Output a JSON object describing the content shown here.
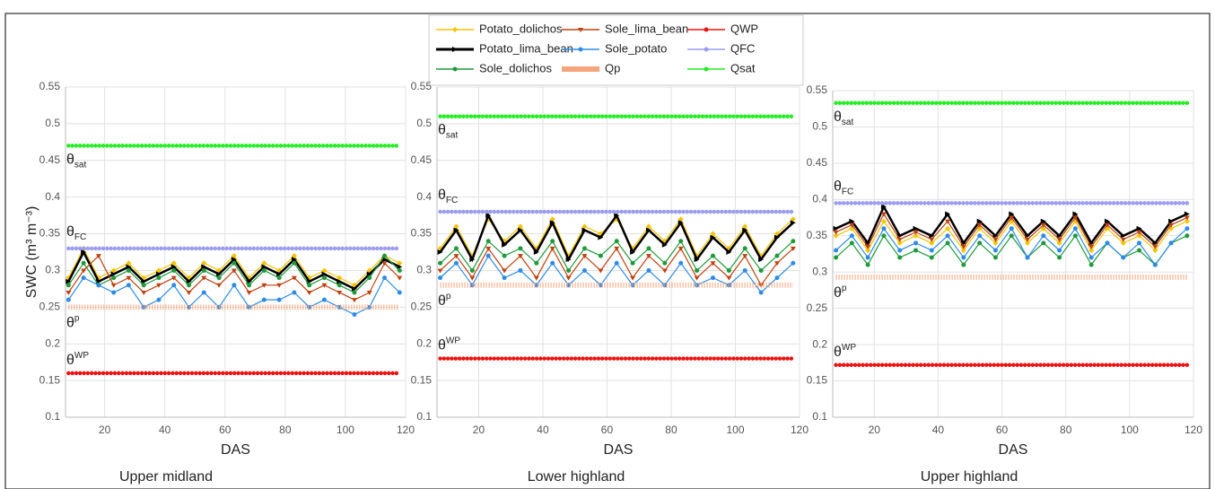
{
  "legend": [
    {
      "name": "Potato_dolichos",
      "color": "#f5c400",
      "marker": "diamond"
    },
    {
      "name": "Potato_lima_bean",
      "color": "#000000",
      "marker": "arrow"
    },
    {
      "name": "Sole_dolichos",
      "color": "#1e9a3a",
      "marker": "circle"
    },
    {
      "name": "Sole_lima_bean",
      "color": "#c0400f",
      "marker": "triangle"
    },
    {
      "name": "Sole_potato",
      "color": "#2e8be6",
      "marker": "circle"
    },
    {
      "name": "Qp",
      "color": "#f5a57c",
      "marker": "band"
    },
    {
      "name": "QWP",
      "color": "#ee1111",
      "marker": "dots"
    },
    {
      "name": "QFC",
      "color": "#9c9cf0",
      "marker": "dots"
    },
    {
      "name": "Qsat",
      "color": "#22ee22",
      "marker": "dots"
    }
  ],
  "chart_data": [
    {
      "type": "line",
      "subtitle": "Upper midland",
      "xlabel": "DAS",
      "ylabel": "SWC (m³ m⁻³)",
      "xlim": [
        7,
        120
      ],
      "xticks": [
        20,
        40,
        60,
        80,
        100,
        120
      ],
      "ylim": [
        0.1,
        0.55
      ],
      "yticks": [
        0.1,
        0.15,
        0.2,
        0.25,
        0.3,
        0.35,
        0.4,
        0.45,
        0.5,
        0.55
      ],
      "grid": true,
      "x": [
        8,
        13,
        18,
        23,
        28,
        33,
        38,
        43,
        48,
        53,
        58,
        63,
        68,
        73,
        78,
        83,
        88,
        93,
        98,
        103,
        108,
        113,
        118
      ],
      "series": [
        {
          "values": [
            0.29,
            0.33,
            0.29,
            0.3,
            0.31,
            0.29,
            0.3,
            0.31,
            0.29,
            0.31,
            0.3,
            0.32,
            0.29,
            0.31,
            0.3,
            0.32,
            0.29,
            0.3,
            0.29,
            0.28,
            0.3,
            0.32,
            0.31
          ]
        },
        {
          "values": [
            0.285,
            0.325,
            0.285,
            0.295,
            0.305,
            0.285,
            0.295,
            0.305,
            0.285,
            0.305,
            0.295,
            0.315,
            0.285,
            0.305,
            0.295,
            0.315,
            0.285,
            0.295,
            0.285,
            0.275,
            0.295,
            0.315,
            0.305
          ]
        },
        {
          "values": [
            0.28,
            0.31,
            0.28,
            0.29,
            0.3,
            0.28,
            0.29,
            0.3,
            0.28,
            0.3,
            0.29,
            0.31,
            0.28,
            0.3,
            0.29,
            0.31,
            0.28,
            0.29,
            0.28,
            0.27,
            0.29,
            0.32,
            0.3
          ]
        },
        {
          "values": [
            0.27,
            0.3,
            0.32,
            0.28,
            0.29,
            0.27,
            0.28,
            0.29,
            0.27,
            0.29,
            0.28,
            0.3,
            0.27,
            0.28,
            0.28,
            0.29,
            0.27,
            0.28,
            0.27,
            0.26,
            0.27,
            0.31,
            0.29
          ]
        },
        {
          "values": [
            0.26,
            0.29,
            0.28,
            0.27,
            0.28,
            0.25,
            0.26,
            0.28,
            0.25,
            0.27,
            0.25,
            0.28,
            0.25,
            0.26,
            0.26,
            0.27,
            0.25,
            0.26,
            0.25,
            0.24,
            0.25,
            0.29,
            0.27
          ]
        },
        {
          "values": [
            0.25,
            0.25,
            0.25,
            0.25,
            0.25,
            0.25,
            0.25,
            0.25,
            0.25,
            0.25,
            0.25,
            0.25,
            0.25,
            0.25,
            0.25,
            0.25,
            0.25,
            0.25,
            0.25,
            0.25,
            0.25,
            0.25,
            0.25
          ],
          "label": {
            "base": "θ",
            "sup": "p"
          }
        },
        {
          "values": [
            0.16,
            0.16,
            0.16,
            0.16,
            0.16,
            0.16,
            0.16,
            0.16,
            0.16,
            0.16,
            0.16,
            0.16,
            0.16,
            0.16,
            0.16,
            0.16,
            0.16,
            0.16,
            0.16,
            0.16,
            0.16,
            0.16,
            0.16
          ],
          "label": {
            "base": "θ",
            "sup": "WP"
          }
        },
        {
          "values": [
            0.33,
            0.33,
            0.33,
            0.33,
            0.33,
            0.33,
            0.33,
            0.33,
            0.33,
            0.33,
            0.33,
            0.33,
            0.33,
            0.33,
            0.33,
            0.33,
            0.33,
            0.33,
            0.33,
            0.33,
            0.33,
            0.33,
            0.33
          ],
          "label": {
            "base": "θ",
            "sub": "FC"
          }
        },
        {
          "values": [
            0.47,
            0.47,
            0.47,
            0.47,
            0.47,
            0.47,
            0.47,
            0.47,
            0.47,
            0.47,
            0.47,
            0.47,
            0.47,
            0.47,
            0.47,
            0.47,
            0.47,
            0.47,
            0.47,
            0.47,
            0.47,
            0.47,
            0.47
          ],
          "label": {
            "base": "θ",
            "sub": "sat"
          }
        }
      ]
    },
    {
      "type": "line",
      "subtitle": "Lower highland",
      "xlabel": "DAS",
      "xlim": [
        7,
        120
      ],
      "xticks": [
        20,
        40,
        60,
        80,
        100,
        120
      ],
      "ylim": [
        0.1,
        0.55
      ],
      "yticks": [
        0.1,
        0.15,
        0.2,
        0.25,
        0.3,
        0.35,
        0.4,
        0.45,
        0.5,
        0.55
      ],
      "grid": true,
      "x": [
        8,
        13,
        18,
        23,
        28,
        33,
        38,
        43,
        48,
        53,
        58,
        63,
        68,
        73,
        78,
        83,
        88,
        93,
        98,
        103,
        108,
        113,
        118
      ],
      "series": [
        {
          "values": [
            0.33,
            0.36,
            0.32,
            0.37,
            0.34,
            0.36,
            0.33,
            0.37,
            0.32,
            0.36,
            0.35,
            0.37,
            0.33,
            0.36,
            0.34,
            0.37,
            0.32,
            0.35,
            0.33,
            0.36,
            0.32,
            0.35,
            0.37
          ]
        },
        {
          "values": [
            0.325,
            0.355,
            0.315,
            0.375,
            0.335,
            0.355,
            0.325,
            0.365,
            0.315,
            0.355,
            0.345,
            0.375,
            0.325,
            0.355,
            0.335,
            0.365,
            0.315,
            0.345,
            0.325,
            0.355,
            0.315,
            0.345,
            0.365
          ]
        },
        {
          "values": [
            0.31,
            0.33,
            0.3,
            0.34,
            0.32,
            0.33,
            0.31,
            0.34,
            0.3,
            0.33,
            0.32,
            0.34,
            0.31,
            0.33,
            0.31,
            0.34,
            0.3,
            0.32,
            0.3,
            0.33,
            0.3,
            0.32,
            0.34
          ]
        },
        {
          "values": [
            0.3,
            0.32,
            0.29,
            0.33,
            0.3,
            0.32,
            0.29,
            0.33,
            0.29,
            0.32,
            0.3,
            0.33,
            0.29,
            0.32,
            0.3,
            0.33,
            0.29,
            0.31,
            0.29,
            0.32,
            0.28,
            0.31,
            0.33
          ]
        },
        {
          "values": [
            0.29,
            0.31,
            0.28,
            0.32,
            0.29,
            0.3,
            0.28,
            0.31,
            0.28,
            0.3,
            0.28,
            0.31,
            0.28,
            0.3,
            0.28,
            0.31,
            0.28,
            0.29,
            0.28,
            0.3,
            0.27,
            0.29,
            0.31
          ]
        },
        {
          "values": [
            0.28,
            0.28,
            0.28,
            0.28,
            0.28,
            0.28,
            0.28,
            0.28,
            0.28,
            0.28,
            0.28,
            0.28,
            0.28,
            0.28,
            0.28,
            0.28,
            0.28,
            0.28,
            0.28,
            0.28,
            0.28,
            0.28,
            0.28
          ],
          "label": {
            "base": "θ",
            "sup": "p"
          }
        },
        {
          "values": [
            0.18,
            0.18,
            0.18,
            0.18,
            0.18,
            0.18,
            0.18,
            0.18,
            0.18,
            0.18,
            0.18,
            0.18,
            0.18,
            0.18,
            0.18,
            0.18,
            0.18,
            0.18,
            0.18,
            0.18,
            0.18,
            0.18,
            0.18
          ],
          "label": {
            "base": "θ",
            "sup": "WP"
          }
        },
        {
          "values": [
            0.38,
            0.38,
            0.38,
            0.38,
            0.38,
            0.38,
            0.38,
            0.38,
            0.38,
            0.38,
            0.38,
            0.38,
            0.38,
            0.38,
            0.38,
            0.38,
            0.38,
            0.38,
            0.38,
            0.38,
            0.38,
            0.38,
            0.38
          ],
          "label": {
            "base": "θ",
            "sub": "FC"
          }
        },
        {
          "values": [
            0.51,
            0.51,
            0.51,
            0.51,
            0.51,
            0.51,
            0.51,
            0.51,
            0.51,
            0.51,
            0.51,
            0.51,
            0.51,
            0.51,
            0.51,
            0.51,
            0.51,
            0.51,
            0.51,
            0.51,
            0.51,
            0.51,
            0.51
          ],
          "label": {
            "base": "θ",
            "sub": "sat"
          }
        }
      ]
    },
    {
      "type": "line",
      "subtitle": "Upper highland",
      "xlabel": "DAS",
      "xlim": [
        7,
        120
      ],
      "xticks": [
        20,
        40,
        60,
        80,
        100,
        120
      ],
      "ylim": [
        0.1,
        0.55
      ],
      "yticks": [
        0.1,
        0.15,
        0.2,
        0.25,
        0.3,
        0.35,
        0.4,
        0.45,
        0.5,
        0.55
      ],
      "grid": true,
      "x": [
        8,
        13,
        18,
        23,
        28,
        33,
        38,
        43,
        48,
        53,
        58,
        63,
        68,
        73,
        78,
        83,
        88,
        93,
        98,
        103,
        108,
        113,
        118
      ],
      "series": [
        {
          "values": [
            0.35,
            0.36,
            0.33,
            0.37,
            0.34,
            0.35,
            0.34,
            0.36,
            0.33,
            0.36,
            0.34,
            0.37,
            0.34,
            0.36,
            0.34,
            0.37,
            0.33,
            0.36,
            0.34,
            0.35,
            0.33,
            0.36,
            0.37
          ]
        },
        {
          "values": [
            0.36,
            0.37,
            0.34,
            0.39,
            0.35,
            0.36,
            0.35,
            0.38,
            0.34,
            0.37,
            0.35,
            0.38,
            0.35,
            0.37,
            0.35,
            0.38,
            0.34,
            0.37,
            0.35,
            0.36,
            0.34,
            0.37,
            0.38
          ]
        },
        {
          "values": [
            0.32,
            0.34,
            0.31,
            0.35,
            0.32,
            0.33,
            0.32,
            0.34,
            0.31,
            0.34,
            0.32,
            0.35,
            0.32,
            0.34,
            0.32,
            0.35,
            0.31,
            0.34,
            0.32,
            0.33,
            0.31,
            0.34,
            0.35
          ]
        },
        {
          "values": [
            0.355,
            0.365,
            0.335,
            0.38,
            0.345,
            0.355,
            0.345,
            0.37,
            0.335,
            0.365,
            0.345,
            0.375,
            0.345,
            0.365,
            0.345,
            0.375,
            0.335,
            0.365,
            0.345,
            0.355,
            0.335,
            0.365,
            0.375
          ]
        },
        {
          "values": [
            0.33,
            0.35,
            0.32,
            0.36,
            0.33,
            0.34,
            0.33,
            0.35,
            0.32,
            0.35,
            0.33,
            0.36,
            0.32,
            0.35,
            0.33,
            0.36,
            0.32,
            0.34,
            0.32,
            0.34,
            0.31,
            0.34,
            0.36
          ]
        },
        {
          "values": [
            0.293,
            0.293,
            0.293,
            0.293,
            0.293,
            0.293,
            0.293,
            0.293,
            0.293,
            0.293,
            0.293,
            0.293,
            0.293,
            0.293,
            0.293,
            0.293,
            0.293,
            0.293,
            0.293,
            0.293,
            0.293,
            0.293,
            0.293
          ],
          "label": {
            "base": "θ",
            "sup": "p"
          }
        },
        {
          "values": [
            0.172,
            0.172,
            0.172,
            0.172,
            0.172,
            0.172,
            0.172,
            0.172,
            0.172,
            0.172,
            0.172,
            0.172,
            0.172,
            0.172,
            0.172,
            0.172,
            0.172,
            0.172,
            0.172,
            0.172,
            0.172,
            0.172,
            0.172
          ],
          "label": {
            "base": "θ",
            "sup": "WP"
          }
        },
        {
          "values": [
            0.395,
            0.395,
            0.395,
            0.395,
            0.395,
            0.395,
            0.395,
            0.395,
            0.395,
            0.395,
            0.395,
            0.395,
            0.395,
            0.395,
            0.395,
            0.395,
            0.395,
            0.395,
            0.395,
            0.395,
            0.395,
            0.395,
            0.395
          ],
          "label": {
            "base": "θ",
            "sub": "FC"
          }
        },
        {
          "values": [
            0.533,
            0.533,
            0.533,
            0.533,
            0.533,
            0.533,
            0.533,
            0.533,
            0.533,
            0.533,
            0.533,
            0.533,
            0.533,
            0.533,
            0.533,
            0.533,
            0.533,
            0.533,
            0.533,
            0.533,
            0.533,
            0.533,
            0.533
          ],
          "label": {
            "base": "θ",
            "sub": "sat"
          }
        }
      ]
    }
  ]
}
